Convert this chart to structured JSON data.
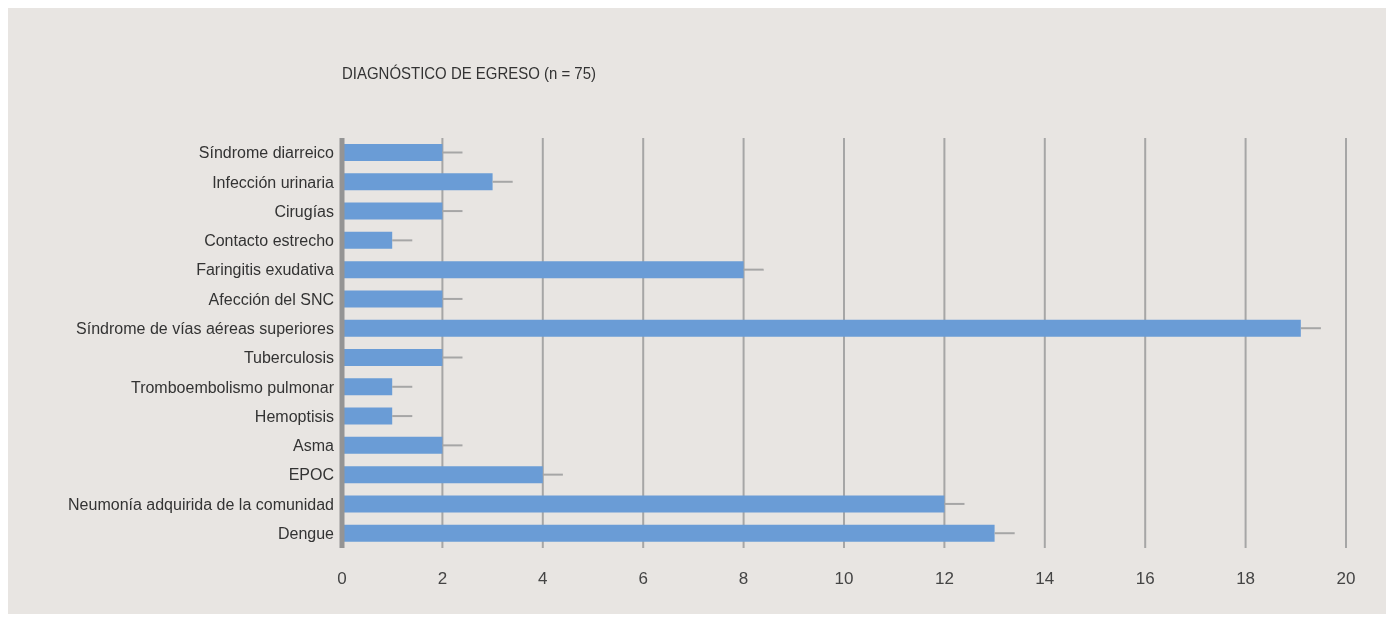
{
  "chart_data": {
    "type": "bar",
    "orientation": "horizontal",
    "title": "DIAGNÓSTICO DE EGRESO (n = 75)",
    "categories": [
      "Síndrome diarreico",
      "Infección urinaria",
      "Cirugías",
      "Contacto estrecho",
      "Faringitis exudativa",
      "Afección del SNC",
      "Síndrome de vías aéreas superiores",
      "Tuberculosis",
      "Tromboembolismo pulmonar",
      "Hemoptisis",
      "Asma",
      "EPOC",
      "Neumonía adquirida de la comunidad",
      "Dengue"
    ],
    "values": [
      2,
      3,
      2,
      1,
      8,
      2,
      19.1,
      2,
      1,
      1,
      2,
      4,
      12,
      13
    ],
    "errors": [
      [
        2,
        2.4
      ],
      [
        3,
        3.4
      ],
      [
        2,
        2.4
      ],
      [
        1,
        1.4
      ],
      [
        8,
        8.4
      ],
      [
        2,
        2.4
      ],
      [
        19.1,
        19.5
      ],
      [
        2,
        2.4
      ],
      [
        1,
        1.4
      ],
      [
        1,
        1.4
      ],
      [
        2,
        2.4
      ],
      [
        4,
        4.4
      ],
      [
        12,
        12.4
      ],
      [
        13,
        13.4
      ]
    ],
    "color": "#6a9cd6",
    "xlim": [
      0,
      20
    ],
    "xticks": [
      0,
      2,
      4,
      6,
      8,
      10,
      12,
      14,
      16,
      18,
      20
    ],
    "grid": "x"
  }
}
